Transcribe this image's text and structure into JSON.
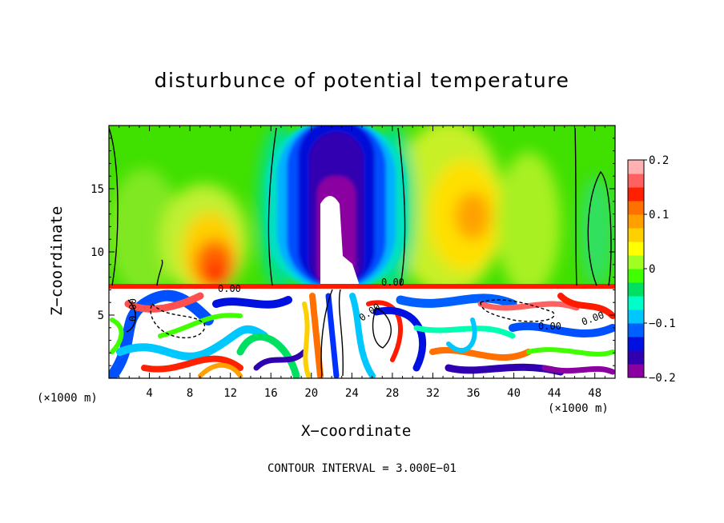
{
  "chart_data": {
    "type": "heatmap",
    "title": "disturbunce of potential temperature",
    "xlabel": "X−coordinate",
    "ylabel": "Z−coordinate",
    "x_unit_label": "(×1000 m)",
    "xlim": [
      0,
      50
    ],
    "ylim": [
      0,
      20
    ],
    "x_ticks": [
      "4",
      "8",
      "12",
      "16",
      "20",
      "24",
      "28",
      "32",
      "36",
      "40",
      "44",
      "48"
    ],
    "y_ticks": [
      "5",
      "10",
      "15"
    ],
    "colorbar": {
      "range": [
        -0.2,
        0.2
      ],
      "tick_labels": [
        "0.2",
        "0.1",
        "0",
        "−0.1",
        "−0.2"
      ],
      "colors": [
        "#8b00a0",
        "#3000b0",
        "#0010e0",
        "#0060ff",
        "#00c8ff",
        "#00ffc8",
        "#00e060",
        "#40ff00",
        "#a0ff20",
        "#ffff00",
        "#ffd000",
        "#ffa000",
        "#ff7000",
        "#ff2000",
        "#ff6060",
        "#ffb0b0"
      ]
    },
    "contour_labels": [
      "0.00",
      "0.00",
      "0.00",
      "0.00",
      "0.00",
      "0.00"
    ],
    "features": [
      {
        "name": "upper negative anomaly",
        "x": 22.5,
        "z_range": [
          7.5,
          20
        ],
        "value": -0.2
      },
      {
        "name": "upper positive anomaly",
        "x": 10.5,
        "z_range": [
          8,
          14
        ],
        "value": 0.15
      },
      {
        "name": "upper positive anomaly",
        "x": 36,
        "z_range": [
          10,
          18
        ],
        "value": 0.1
      },
      {
        "name": "inversion layer",
        "z": 7.3
      }
    ],
    "footer": "CONTOUR INTERVAL = 3.000E−01"
  }
}
